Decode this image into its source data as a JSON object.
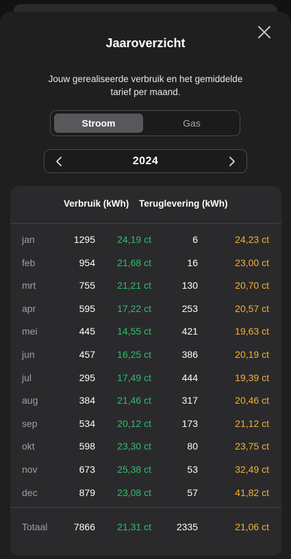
{
  "header": {
    "title": "Jaaroverzicht",
    "subtitle": "Jouw gerealiseerde verbruik en het gemiddelde tarief per maand."
  },
  "segment": {
    "options": [
      "Stroom",
      "Gas"
    ],
    "selected": "Stroom"
  },
  "year_nav": {
    "year": "2024"
  },
  "table": {
    "columns": [
      "Verbruik (kWh)",
      "Teruglevering (kWh)"
    ],
    "rows": [
      {
        "month": "jan",
        "verbruik": "1295",
        "tarief_verbruik": "24,19 ct",
        "teruglevering": "6",
        "tarief_teruglevering": "24,23 ct"
      },
      {
        "month": "feb",
        "verbruik": "954",
        "tarief_verbruik": "21,68 ct",
        "teruglevering": "16",
        "tarief_teruglevering": "23,00 ct"
      },
      {
        "month": "mrt",
        "verbruik": "755",
        "tarief_verbruik": "21,21 ct",
        "teruglevering": "130",
        "tarief_teruglevering": "20,70 ct"
      },
      {
        "month": "apr",
        "verbruik": "595",
        "tarief_verbruik": "17,22 ct",
        "teruglevering": "253",
        "tarief_teruglevering": "20,57 ct"
      },
      {
        "month": "mei",
        "verbruik": "445",
        "tarief_verbruik": "14,55 ct",
        "teruglevering": "421",
        "tarief_teruglevering": "19,63 ct"
      },
      {
        "month": "jun",
        "verbruik": "457",
        "tarief_verbruik": "16,25 ct",
        "teruglevering": "386",
        "tarief_teruglevering": "20,19 ct"
      },
      {
        "month": "jul",
        "verbruik": "295",
        "tarief_verbruik": "17,49 ct",
        "teruglevering": "444",
        "tarief_teruglevering": "19,39 ct"
      },
      {
        "month": "aug",
        "verbruik": "384",
        "tarief_verbruik": "21,46 ct",
        "teruglevering": "317",
        "tarief_teruglevering": "20,46 ct"
      },
      {
        "month": "sep",
        "verbruik": "534",
        "tarief_verbruik": "20,12 ct",
        "teruglevering": "173",
        "tarief_teruglevering": "21,12 ct"
      },
      {
        "month": "okt",
        "verbruik": "598",
        "tarief_verbruik": "23,30 ct",
        "teruglevering": "80",
        "tarief_teruglevering": "23,75 ct"
      },
      {
        "month": "nov",
        "verbruik": "673",
        "tarief_verbruik": "25,38 ct",
        "teruglevering": "53",
        "tarief_teruglevering": "32,49 ct"
      },
      {
        "month": "dec",
        "verbruik": "879",
        "tarief_verbruik": "23,08 ct",
        "teruglevering": "57",
        "tarief_teruglevering": "41,82 ct"
      }
    ],
    "total": {
      "month": "Totaal",
      "verbruik": "7866",
      "tarief_verbruik": "21,31 ct",
      "teruglevering": "2335",
      "tarief_teruglevering": "21,06 ct"
    }
  },
  "colors": {
    "background": "#1f1f20",
    "card": "#2a2a2c",
    "tariff_verbruik": "#2fc06b",
    "tariff_teruglevering": "#f2b338",
    "muted_text": "#a0a0a4"
  },
  "icons": {
    "close": "close-icon",
    "prev": "chevron-left-icon",
    "next": "chevron-right-icon"
  }
}
